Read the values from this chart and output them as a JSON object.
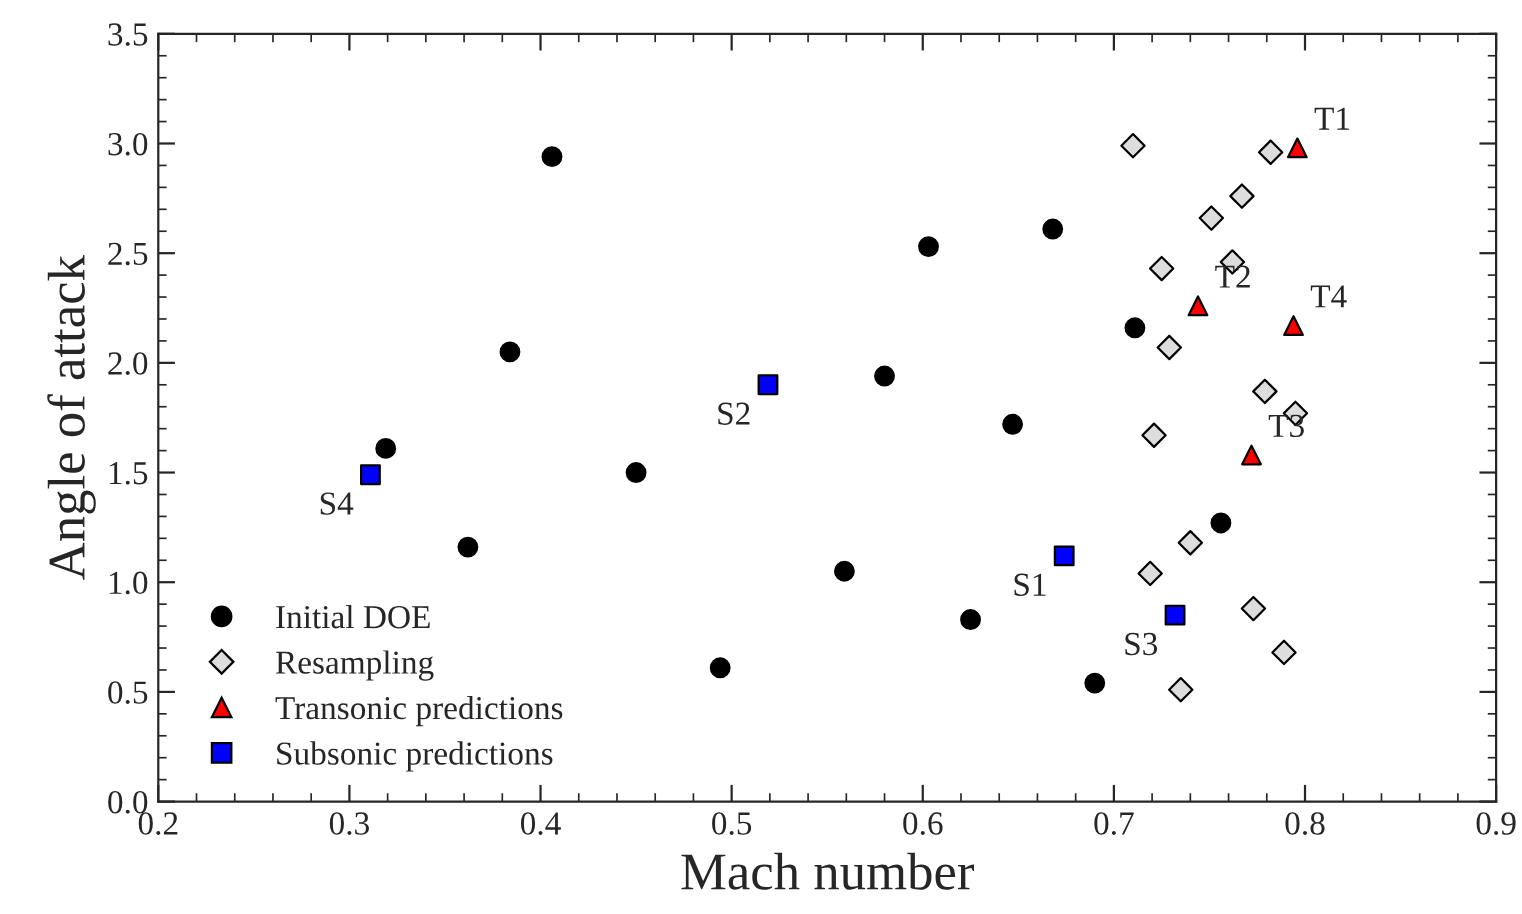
{
  "chart_data": {
    "type": "scatter",
    "xlabel": "Mach number",
    "ylabel": "Angle of attack",
    "xlim": [
      0.2,
      0.9
    ],
    "xticks": [
      0.2,
      0.3,
      0.4,
      0.5,
      0.6,
      0.7,
      0.8,
      0.9
    ],
    "ylim": [
      0.0,
      3.5
    ],
    "yticks": [
      {
        "value": 0,
        "label": "0.0"
      },
      0.5,
      {
        "value": 1,
        "label": "1.0"
      },
      1.5,
      {
        "value": 2,
        "label": "2.0"
      },
      2.5,
      {
        "value": 3,
        "label": "3.0"
      },
      3.5
    ],
    "grid": false,
    "legend": "bottom left",
    "series": [
      {
        "name": "Initial DOE",
        "color": "#000000",
        "marker": "circle",
        "x": [
          0.406,
          0.384,
          0.319,
          0.362,
          0.45,
          0.494,
          0.559,
          0.58,
          0.603,
          0.625,
          0.647,
          0.668,
          0.69,
          0.711,
          0.756
        ],
        "values": [
          2.94,
          2.05,
          1.61,
          1.16,
          1.5,
          0.61,
          1.05,
          1.94,
          2.53,
          0.83,
          1.72,
          2.61,
          0.54,
          2.16,
          1.27
        ]
      },
      {
        "name": "Resampling",
        "color": "#dddddd",
        "marker": "diamond",
        "x": [
          0.71,
          0.782,
          0.767,
          0.751,
          0.725,
          0.762,
          0.729,
          0.779,
          0.795,
          0.721,
          0.74,
          0.719,
          0.773,
          0.789,
          0.735
        ],
        "values": [
          2.99,
          2.96,
          2.76,
          2.66,
          2.43,
          2.46,
          2.07,
          1.87,
          1.77,
          1.67,
          1.18,
          1.04,
          0.88,
          0.68,
          0.51
        ]
      },
      {
        "name": "Transonic predictions",
        "color": "#ff0000",
        "marker": "triangle",
        "x": [
          0.796,
          0.744,
          0.794,
          0.772
        ],
        "values": [
          2.98,
          2.26,
          2.17,
          1.58
        ]
      },
      {
        "name": "Subsonic predictions",
        "color": "#0000ff",
        "marker": "square",
        "x": [
          0.674,
          0.519,
          0.732,
          0.311
        ],
        "values": [
          1.12,
          1.9,
          0.85,
          1.49
        ]
      }
    ],
    "annotations": [
      {
        "text": "T1",
        "x": 0.796,
        "y": 2.98
      },
      {
        "text": "T2",
        "x": 0.744,
        "y": 2.26
      },
      {
        "text": "T4",
        "x": 0.794,
        "y": 2.17
      },
      {
        "text": "T3",
        "x": 0.772,
        "y": 1.58
      },
      {
        "text": "S1",
        "x": 0.674,
        "y": 1.12
      },
      {
        "text": "S2",
        "x": 0.519,
        "y": 1.9
      },
      {
        "text": "S3",
        "x": 0.732,
        "y": 0.85
      },
      {
        "text": "S4",
        "x": 0.311,
        "y": 1.49
      }
    ]
  }
}
